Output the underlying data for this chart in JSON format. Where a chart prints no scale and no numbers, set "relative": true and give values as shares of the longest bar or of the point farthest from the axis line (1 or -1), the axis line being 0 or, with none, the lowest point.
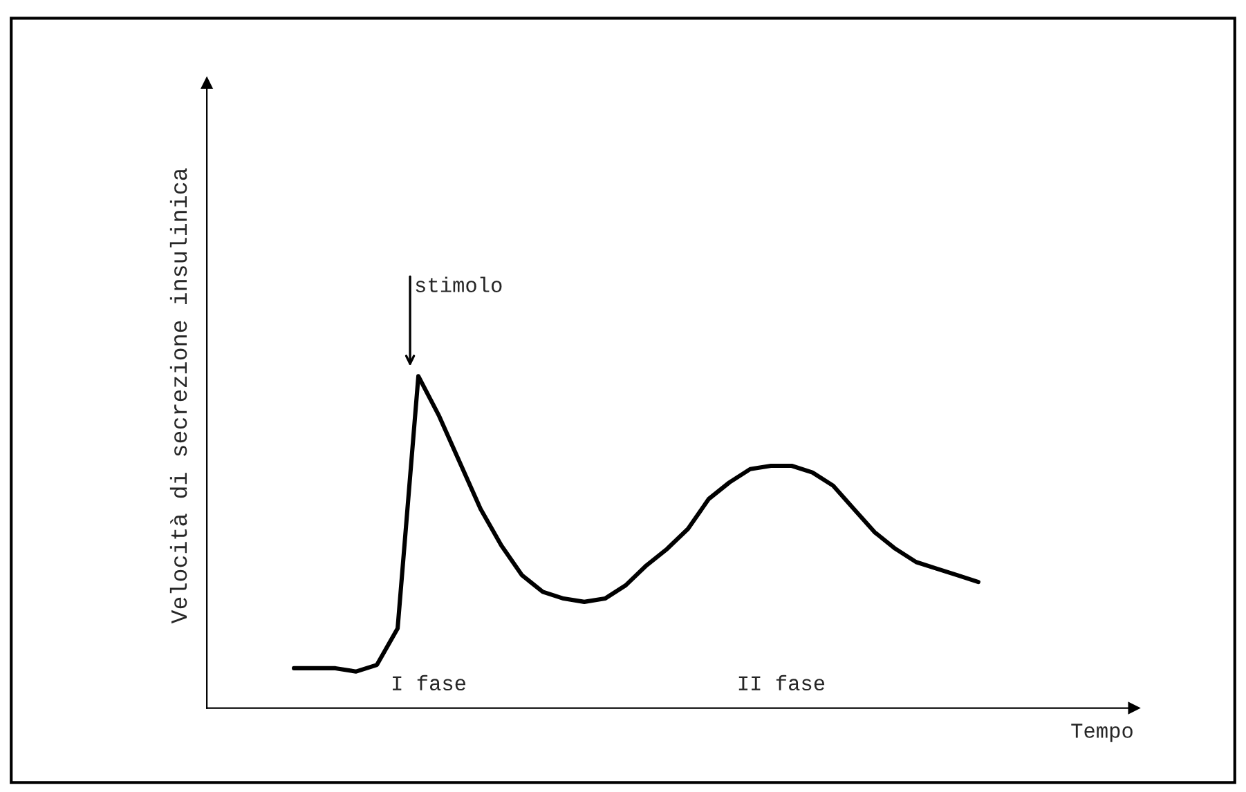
{
  "chart_data": {
    "type": "line",
    "relative": true,
    "xlabel": "Tempo",
    "ylabel": "Velocità di secrezione insulinica",
    "categories": [
      null,
      null,
      null,
      null,
      null,
      null,
      null,
      null,
      null,
      null,
      null,
      null,
      null,
      null,
      null,
      null,
      null,
      null,
      null,
      null,
      null,
      null,
      null,
      null,
      null,
      null,
      null,
      null,
      null,
      null,
      null,
      null,
      null,
      null
    ],
    "series": [
      {
        "color": "#000000",
        "values": [
          0.12,
          0.12,
          0.12,
          0.11,
          0.13,
          0.24,
          1.0,
          0.88,
          0.74,
          0.6,
          0.49,
          0.4,
          0.35,
          0.33,
          0.32,
          0.33,
          0.37,
          0.43,
          0.48,
          0.54,
          0.63,
          0.68,
          0.72,
          0.73,
          0.73,
          0.71,
          0.67,
          0.6,
          0.53,
          0.48,
          0.44,
          0.42,
          0.4,
          0.38
        ]
      }
    ],
    "annotations": [
      "stimolo",
      "I fase",
      "II fase"
    ],
    "grid": false,
    "legend": false,
    "marker": "none",
    "line_style": "solid"
  }
}
